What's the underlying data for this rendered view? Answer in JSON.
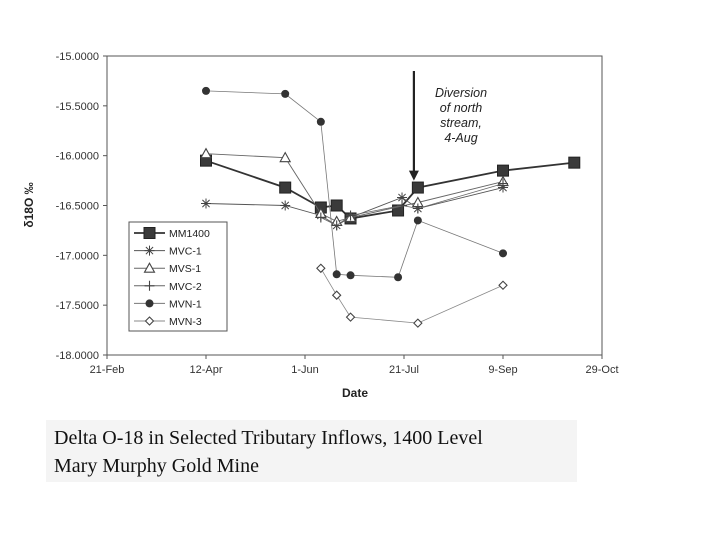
{
  "chart_data": {
    "type": "line",
    "xlabel": "Date",
    "ylabel": "δ18O ‰",
    "x_ticks": [
      "21-Feb",
      "12-Apr",
      "1-Jun",
      "21-Jul",
      "9-Sep",
      "29-Oct"
    ],
    "y_ticks": [
      "-15.0000",
      "-15.5000",
      "-16.0000",
      "-16.5000",
      "-17.0000",
      "-17.5000",
      "-18.0000"
    ],
    "xlim": [
      "21-Feb",
      "29-Oct"
    ],
    "ylim": [
      -18.0,
      -15.0
    ],
    "grid": false,
    "legend_position": "bottom-left",
    "series": [
      {
        "name": "MM1400",
        "marker": "square",
        "x": [
          "2010-04-12",
          "2010-05-22",
          "2010-06-09",
          "2010-06-17",
          "2010-06-24",
          "2010-07-18",
          "2010-07-28",
          "2010-09-09",
          "2010-10-15"
        ],
        "y": [
          -16.05,
          -16.32,
          -16.52,
          -16.5,
          -16.63,
          -16.55,
          -16.32,
          -16.15,
          -16.07
        ]
      },
      {
        "name": "MVC-1",
        "marker": "asterisk",
        "x": [
          "2010-04-12",
          "2010-05-22",
          "2010-06-09",
          "2010-06-17",
          "2010-06-24",
          "2010-07-20",
          "2010-07-28",
          "2010-09-09"
        ],
        "y": [
          -16.48,
          -16.5,
          -16.6,
          -16.7,
          -16.62,
          -16.42,
          -16.53,
          -16.32
        ]
      },
      {
        "name": "MVS-1",
        "marker": "triangle",
        "x": [
          "2010-04-12",
          "2010-05-22",
          "2010-06-09",
          "2010-06-17",
          "2010-06-24",
          "2010-07-28",
          "2010-09-09"
        ],
        "y": [
          -15.98,
          -16.02,
          -16.58,
          -16.66,
          -16.62,
          -16.47,
          -16.26
        ]
      },
      {
        "name": "MVC-2",
        "marker": "plus",
        "x": [
          "2010-06-09",
          "2010-06-17",
          "2010-06-24",
          "2010-07-20",
          "2010-07-28",
          "2010-09-09"
        ],
        "y": [
          -16.62,
          -16.7,
          -16.6,
          -16.5,
          -16.53,
          -16.28
        ]
      },
      {
        "name": "MVN-1",
        "marker": "circle",
        "x": [
          "2010-04-12",
          "2010-05-22",
          "2010-06-09",
          "2010-06-17",
          "2010-06-24",
          "2010-07-18",
          "2010-07-28",
          "2010-09-09"
        ],
        "y": [
          -15.35,
          -15.38,
          -15.66,
          -17.19,
          -17.2,
          -17.22,
          -16.65,
          -16.98
        ]
      },
      {
        "name": "MVN-3",
        "marker": "diamond",
        "x": [
          "2010-06-09",
          "2010-06-17",
          "2010-06-24",
          "2010-07-28",
          "2010-09-09"
        ],
        "y": [
          -17.13,
          -17.4,
          -17.62,
          -17.68,
          -17.3
        ]
      }
    ],
    "annotations": [
      {
        "text_lines": [
          "Diversion",
          "of north",
          "stream,",
          "4-Aug"
        ],
        "arrow_x": "2010-07-26",
        "arrow_from_y": -15.15,
        "arrow_to_y": -16.25
      }
    ]
  },
  "caption": {
    "line1": "Delta O-18 in Selected Tributary Inflows, 1400 Level",
    "line2": "Mary Murphy Gold Mine"
  }
}
